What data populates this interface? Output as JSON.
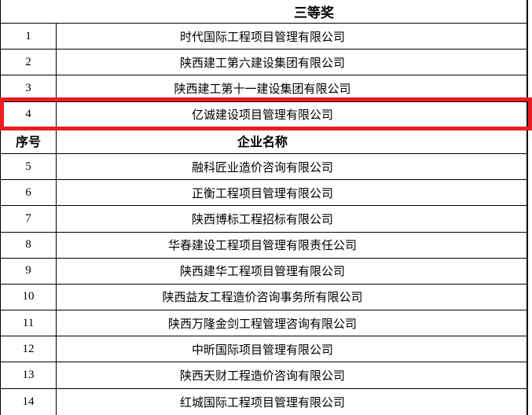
{
  "page": {
    "title": "三等奖",
    "header": {
      "no": "序号",
      "name": "企业名称"
    },
    "rows": [
      {
        "no": "1",
        "name": "时代国际工程项目管理有限公司"
      },
      {
        "no": "2",
        "name": "陕西建工第六建设集团有限公司"
      },
      {
        "no": "3",
        "name": "陕西建工第十一建设集团有限公司"
      },
      {
        "no": "4",
        "name": "亿诚建设项目管理有限公司"
      },
      {
        "no": "5",
        "name": "融科匠业造价咨询有限公司"
      },
      {
        "no": "6",
        "name": "正衡工程项目管理有限公司"
      },
      {
        "no": "7",
        "name": "陕西博标工程招标有限公司"
      },
      {
        "no": "8",
        "name": "华春建设工程项目管理有限责任公司"
      },
      {
        "no": "9",
        "name": "陕西建华工程项目管理有限公司"
      },
      {
        "no": "10",
        "name": "陕西益友工程造价咨询事务所有限公司"
      },
      {
        "no": "11",
        "name": "陕西万隆金剑工程管理咨询有限公司"
      },
      {
        "no": "12",
        "name": "中昕国际项目管理有限公司"
      },
      {
        "no": "13",
        "name": "陕西天财工程造价咨询有限公司"
      },
      {
        "no": "14",
        "name": "红城国际工程项目管理有限公司"
      }
    ],
    "highlight": {
      "row_no": "4",
      "color": "#ec1c24"
    }
  }
}
